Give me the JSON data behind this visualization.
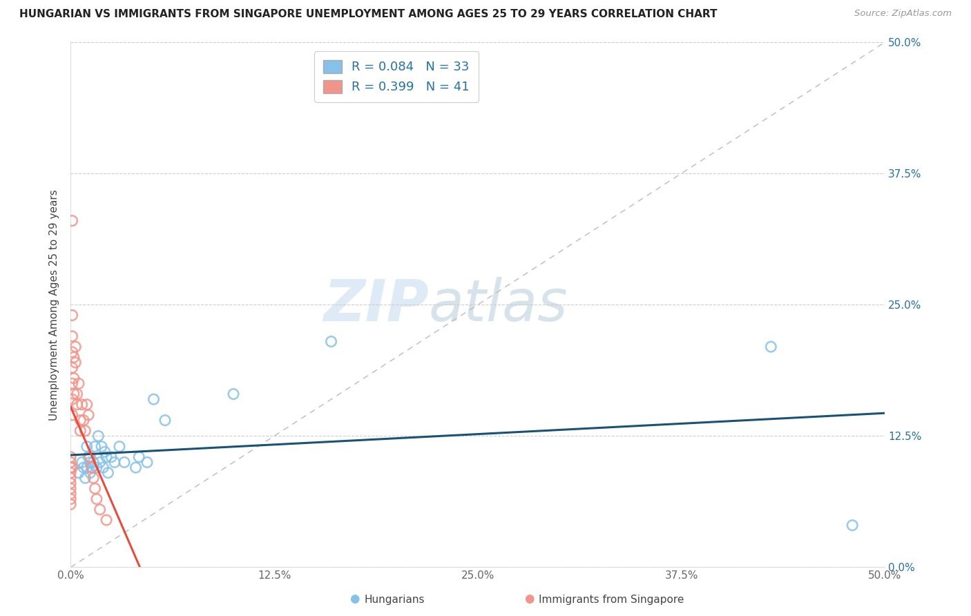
{
  "title": "HUNGARIAN VS IMMIGRANTS FROM SINGAPORE UNEMPLOYMENT AMONG AGES 25 TO 29 YEARS CORRELATION CHART",
  "source": "Source: ZipAtlas.com",
  "ylabel": "Unemployment Among Ages 25 to 29 years",
  "legend_r1": "R = 0.084",
  "legend_n1": "N = 33",
  "legend_r2": "R = 0.399",
  "legend_n2": "N = 41",
  "blue_color": "#85c1e9",
  "pink_color": "#f1948a",
  "blue_line_color": "#1a5276",
  "pink_line_color": "#e74c3c",
  "watermark_zip": "ZIP",
  "watermark_atlas": "atlas",
  "blue_scatter_x": [
    0.005,
    0.007,
    0.008,
    0.009,
    0.01,
    0.01,
    0.011,
    0.012,
    0.012,
    0.013,
    0.014,
    0.015,
    0.016,
    0.017,
    0.018,
    0.019,
    0.02,
    0.021,
    0.022,
    0.023,
    0.025,
    0.027,
    0.03,
    0.033,
    0.04,
    0.042,
    0.047,
    0.051,
    0.058,
    0.1,
    0.16,
    0.43,
    0.48
  ],
  "blue_scatter_y": [
    0.09,
    0.1,
    0.095,
    0.085,
    0.115,
    0.095,
    0.105,
    0.1,
    0.09,
    0.095,
    0.1,
    0.115,
    0.095,
    0.125,
    0.1,
    0.115,
    0.095,
    0.11,
    0.105,
    0.09,
    0.105,
    0.1,
    0.115,
    0.1,
    0.095,
    0.105,
    0.1,
    0.16,
    0.14,
    0.165,
    0.215,
    0.21,
    0.04
  ],
  "pink_scatter_x": [
    0.0,
    0.0,
    0.0,
    0.0,
    0.0,
    0.0,
    0.0,
    0.0,
    0.0,
    0.0,
    0.001,
    0.001,
    0.001,
    0.001,
    0.001,
    0.001,
    0.001,
    0.001,
    0.001,
    0.002,
    0.002,
    0.002,
    0.003,
    0.003,
    0.004,
    0.004,
    0.005,
    0.006,
    0.006,
    0.007,
    0.008,
    0.009,
    0.01,
    0.011,
    0.012,
    0.013,
    0.014,
    0.015,
    0.016,
    0.018,
    0.022
  ],
  "pink_scatter_y": [
    0.1,
    0.105,
    0.095,
    0.09,
    0.085,
    0.08,
    0.075,
    0.07,
    0.065,
    0.06,
    0.33,
    0.24,
    0.22,
    0.205,
    0.19,
    0.175,
    0.16,
    0.145,
    0.095,
    0.2,
    0.18,
    0.165,
    0.21,
    0.195,
    0.165,
    0.155,
    0.175,
    0.14,
    0.13,
    0.155,
    0.14,
    0.13,
    0.155,
    0.145,
    0.105,
    0.095,
    0.085,
    0.075,
    0.065,
    0.055,
    0.045
  ],
  "xlim": [
    0.0,
    0.5
  ],
  "ylim": [
    0.0,
    0.5
  ],
  "tick_vals": [
    0.0,
    0.125,
    0.25,
    0.375,
    0.5
  ],
  "tick_labels": [
    "0.0%",
    "12.5%",
    "25.0%",
    "37.5%",
    "50.0%"
  ]
}
